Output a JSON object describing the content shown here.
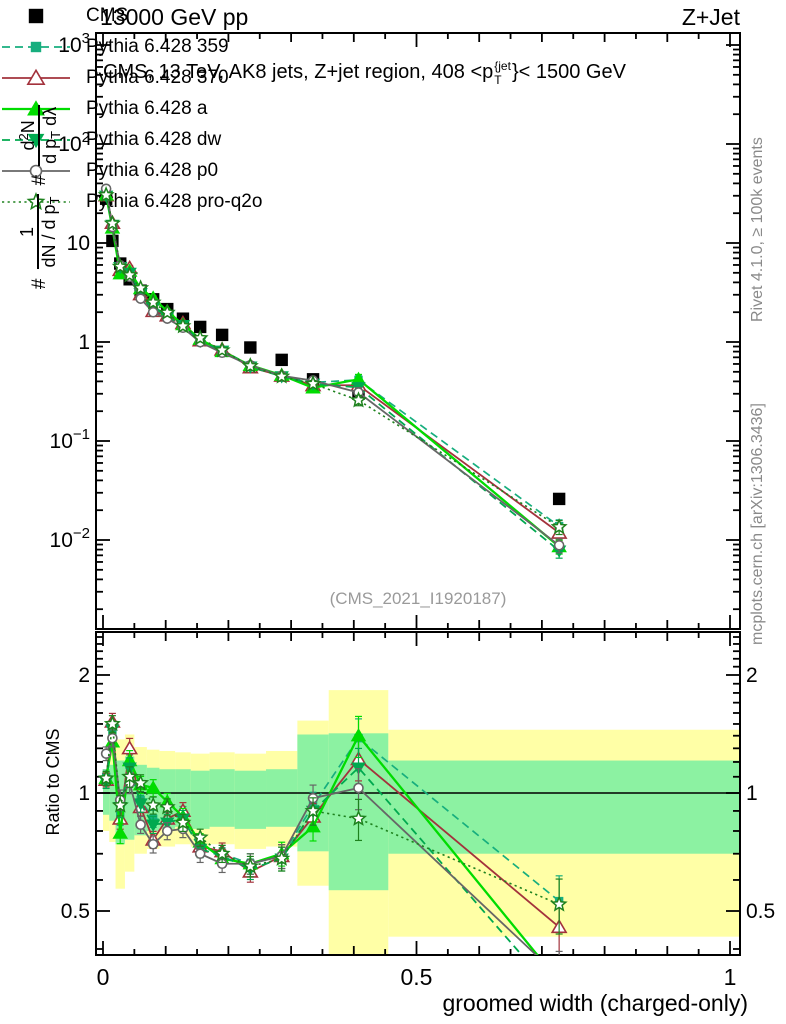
{
  "header": {
    "left": "13000 GeV pp",
    "right": "Z+Jet"
  },
  "main_panel": {
    "title": {
      "prefix": "CMS, 13 TeV, AK8 jets, Z+jet region, 408 <p",
      "sup": "{jet",
      "sub": "T",
      "suffix": "}< 1500 GeV"
    },
    "analysis_tag": "(CMS_2021_I1920187)",
    "ylabel": {
      "hash1": "#",
      "frac1": {
        "num": "1",
        "den": "dN / d p",
        "den_sub": "T"
      },
      "hash2": "#",
      "frac2": {
        "num_d": "d",
        "num_exp": "2",
        "num_n": "N",
        "den": "d p",
        "den_sub": "T",
        "den_tail": " dλ"
      }
    }
  },
  "labels": {
    "ratio_y": "Ratio to CMS",
    "x_title": "groomed width (charged-only)"
  },
  "watermarks": {
    "right_top": "Rivet 4.1.0, ≥ 100k events",
    "right_bottom": "mcplots.cern.ch [arXiv:1306.3436]"
  },
  "chart_data": {
    "type": "line",
    "title": "CMS, 13 TeV, AK8 jets, Z+jet region, 408 <pT{jet}< 1500 GeV",
    "xlabel": "groomed width (charged-only)",
    "ylabel": "#1/(dN/dpT) # d2N/(dpT dlambda)",
    "ylabel_ratio": "Ratio to CMS",
    "xlim": [
      0,
      1
    ],
    "x_bin_edges": [
      0,
      0.01,
      0.02,
      0.035,
      0.05,
      0.07,
      0.09,
      0.115,
      0.14,
      0.17,
      0.21,
      0.26,
      0.31,
      0.36,
      0.455,
      1.0
    ],
    "x": [
      0.005,
      0.015,
      0.0275,
      0.0425,
      0.06,
      0.08,
      0.1025,
      0.1275,
      0.155,
      0.19,
      0.235,
      0.285,
      0.335,
      0.4075,
      0.7275
    ],
    "axes": {
      "top_panel": {
        "yscale": "log",
        "ylim": [
          0.0013,
          1300
        ],
        "ytick_exponents": [
          3,
          2,
          1,
          0,
          -1,
          -2
        ]
      },
      "ratio_panel": {
        "yscale": "log",
        "ylim": [
          0.386,
          2.575
        ],
        "yticks": [
          {
            "value": 2,
            "label": "2"
          },
          {
            "value": 1,
            "label": "1"
          },
          {
            "value": 0.5,
            "label": "0.5"
          }
        ]
      },
      "xticks": [
        {
          "value": 0,
          "label": "0"
        },
        {
          "value": 0.5,
          "label": "0.5"
        },
        {
          "value": 1,
          "label": "1"
        }
      ]
    },
    "reference": {
      "name": "CMS",
      "color": "#000000",
      "marker": "square",
      "ms": 11,
      "values": [
        28,
        10.5,
        6.2,
        4.3,
        3.3,
        2.7,
        2.15,
        1.72,
        1.42,
        1.18,
        0.88,
        0.66,
        0.42,
        0.3,
        0.026
      ]
    },
    "rel_err": [
      0.04,
      0.05,
      0.06,
      0.06,
      0.05,
      0.05,
      0.05,
      0.05,
      0.05,
      0.05,
      0.06,
      0.07,
      0.08,
      0.12,
      0.16
    ],
    "series": [
      {
        "name": "Pythia 6.428 359",
        "color": "#17AE7E",
        "line": "dashed",
        "marker": "square",
        "filled": true,
        "ms": 7,
        "lw": 1.7,
        "ratio": [
          1.1,
          1.42,
          0.88,
          1.18,
          0.96,
          0.86,
          0.85,
          0.88,
          0.73,
          0.7,
          0.66,
          0.69,
          0.93,
          1.38,
          0.53
        ]
      },
      {
        "name": "Pythia 6.428 370",
        "color": "#A3323C",
        "line": "solid",
        "marker": "triangle-up",
        "filled": false,
        "ms": 12,
        "lw": 1.8,
        "ratio": [
          1.08,
          1.52,
          0.86,
          1.3,
          0.92,
          0.76,
          0.86,
          0.9,
          0.73,
          0.71,
          0.63,
          0.69,
          0.87,
          1.22,
          0.455
        ]
      },
      {
        "name": "Pythia 6.428 a",
        "color": "#00DC00",
        "line": "solid",
        "marker": "triangle-up",
        "filled": true,
        "ms": 11,
        "lw": 2.3,
        "ratio": [
          1.09,
          1.35,
          0.79,
          1.21,
          1.05,
          1.03,
          0.95,
          0.87,
          0.75,
          0.68,
          0.66,
          0.7,
          0.82,
          1.4,
          0.33
        ]
      },
      {
        "name": "Pythia 6.428 dw",
        "color": "#00A94F",
        "line": "dashed",
        "marker": "triangle-down",
        "filled": true,
        "ms": 10,
        "lw": 1.8,
        "ratio": [
          1.07,
          1.45,
          0.92,
          1.16,
          0.94,
          0.83,
          0.84,
          0.86,
          0.72,
          0.69,
          0.64,
          0.68,
          0.9,
          1.16,
          0.3
        ]
      },
      {
        "name": "Pythia 6.428 p0",
        "color": "#666666",
        "line": "solid",
        "marker": "circle",
        "filled": false,
        "ms": 9,
        "lw": 1.8,
        "ratio": [
          1.26,
          1.38,
          0.96,
          1.06,
          0.83,
          0.74,
          0.8,
          0.81,
          0.7,
          0.66,
          0.66,
          0.69,
          0.97,
          1.03,
          0.34
        ]
      },
      {
        "name": "Pythia 6.428 pro-q2o",
        "color": "#1E821E",
        "line": "dotted",
        "marker": "star",
        "filled": false,
        "ms": 14,
        "lw": 1.6,
        "ratio": [
          1.09,
          1.5,
          0.93,
          1.1,
          1.06,
          0.93,
          0.92,
          0.84,
          0.77,
          0.7,
          0.65,
          0.68,
          0.9,
          0.86,
          0.52
        ]
      }
    ],
    "bands": {
      "yellow_color": "#FFFFA6",
      "green_color": "#8CF2A2",
      "yellow": [
        [
          0.8,
          1.15
        ],
        [
          0.75,
          1.33
        ],
        [
          0.57,
          1.37
        ],
        [
          0.63,
          1.41
        ],
        [
          0.7,
          1.31
        ],
        [
          0.72,
          1.29
        ],
        [
          0.73,
          1.28
        ],
        [
          0.74,
          1.27
        ],
        [
          0.73,
          1.26
        ],
        [
          0.74,
          1.27
        ],
        [
          0.72,
          1.26
        ],
        [
          0.73,
          1.28
        ],
        [
          0.58,
          1.53
        ],
        [
          0.386,
          1.83
        ],
        [
          0.43,
          1.45
        ]
      ],
      "green": [
        [
          0.88,
          1.12
        ],
        [
          0.85,
          1.18
        ],
        [
          0.74,
          1.21
        ],
        [
          0.76,
          1.24
        ],
        [
          0.78,
          1.18
        ],
        [
          0.8,
          1.16
        ],
        [
          0.81,
          1.15
        ],
        [
          0.82,
          1.15
        ],
        [
          0.81,
          1.14
        ],
        [
          0.82,
          1.15
        ],
        [
          0.81,
          1.14
        ],
        [
          0.82,
          1.15
        ],
        [
          0.71,
          1.41
        ],
        [
          0.565,
          1.42
        ],
        [
          0.7,
          1.21
        ]
      ]
    }
  }
}
